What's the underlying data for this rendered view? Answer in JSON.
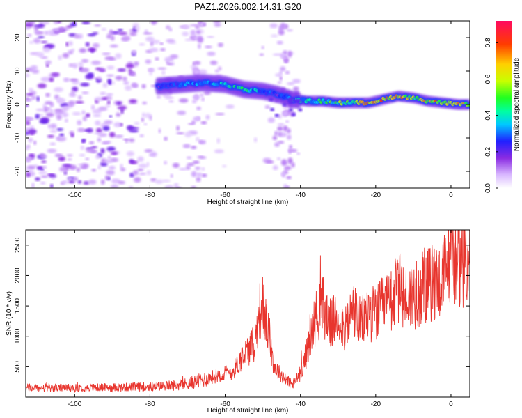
{
  "title": "PAZ1.2026.002.14.31.G20",
  "chart_data": [
    {
      "type": "heatmap",
      "name": "spectrogram",
      "title": "PAZ1.2026.002.14.31.G20",
      "xlabel": "Height of straight line (km)",
      "ylabel": "Frequency (Hz)",
      "xlim": [
        -113,
        5
      ],
      "ylim": [
        -25,
        25
      ],
      "x_ticks": [
        -100,
        -80,
        -60,
        -40,
        -20,
        0
      ],
      "y_ticks": [
        -20,
        -10,
        0,
        10,
        20
      ],
      "ridge": {
        "x": [
          -78,
          -72,
          -66,
          -60,
          -55,
          -50,
          -46,
          -42,
          -38,
          -34,
          -30,
          -26,
          -22,
          -18,
          -14,
          -10,
          -6,
          -2,
          2,
          5
        ],
        "y": [
          5.5,
          6,
          6.5,
          6,
          4.5,
          4,
          3,
          1.5,
          1,
          1,
          0.5,
          0.5,
          0.5,
          1.5,
          2.5,
          2,
          1,
          0.5,
          0,
          0
        ],
        "amplitude": [
          0.2,
          0.3,
          0.35,
          0.4,
          0.45,
          0.35,
          0.25,
          0.4,
          0.45,
          0.5,
          0.55,
          0.6,
          0.7,
          0.8,
          0.75,
          0.65,
          0.7,
          0.75,
          0.8,
          0.6
        ]
      },
      "colorbar": {
        "label": "Normalized spectral amplitude",
        "range": [
          0,
          0.92
        ],
        "ticks": [
          "0.0",
          "0.2",
          "0.4",
          "0.6",
          "0.8"
        ]
      }
    },
    {
      "type": "line",
      "name": "snr",
      "xlabel": "Height of straight line (km)",
      "ylabel": "SNR (10 * v/v)",
      "xlim": [
        -113,
        5
      ],
      "ylim": [
        0,
        2750
      ],
      "x_ticks": [
        -100,
        -80,
        -60,
        -40,
        -20,
        0
      ],
      "y_ticks": [
        500,
        1000,
        1500,
        2000,
        2500
      ],
      "series": [
        {
          "name": "SNR",
          "color": "#e8352e",
          "x": [
            -113,
            -100,
            -90,
            -80,
            -72,
            -66,
            -62,
            -58,
            -55,
            -52,
            -51,
            -50,
            -49,
            -47,
            -44,
            -42,
            -40,
            -38,
            -36,
            -34,
            -32,
            -30,
            -28,
            -26,
            -24,
            -22,
            -20,
            -18,
            -16,
            -14,
            -12,
            -10,
            -8,
            -6,
            -4,
            -2,
            0,
            2,
            4,
            5
          ],
          "values": [
            150,
            150,
            160,
            170,
            200,
            280,
            360,
            420,
            700,
            900,
            1400,
            1500,
            1200,
            500,
            300,
            200,
            400,
            800,
            1300,
            1500,
            1200,
            1300,
            1100,
            1450,
            1200,
            1400,
            1350,
            1500,
            1550,
            1800,
            1600,
            1700,
            1750,
            1850,
            1900,
            1950,
            2400,
            2200,
            2300,
            2450
          ]
        }
      ]
    }
  ]
}
